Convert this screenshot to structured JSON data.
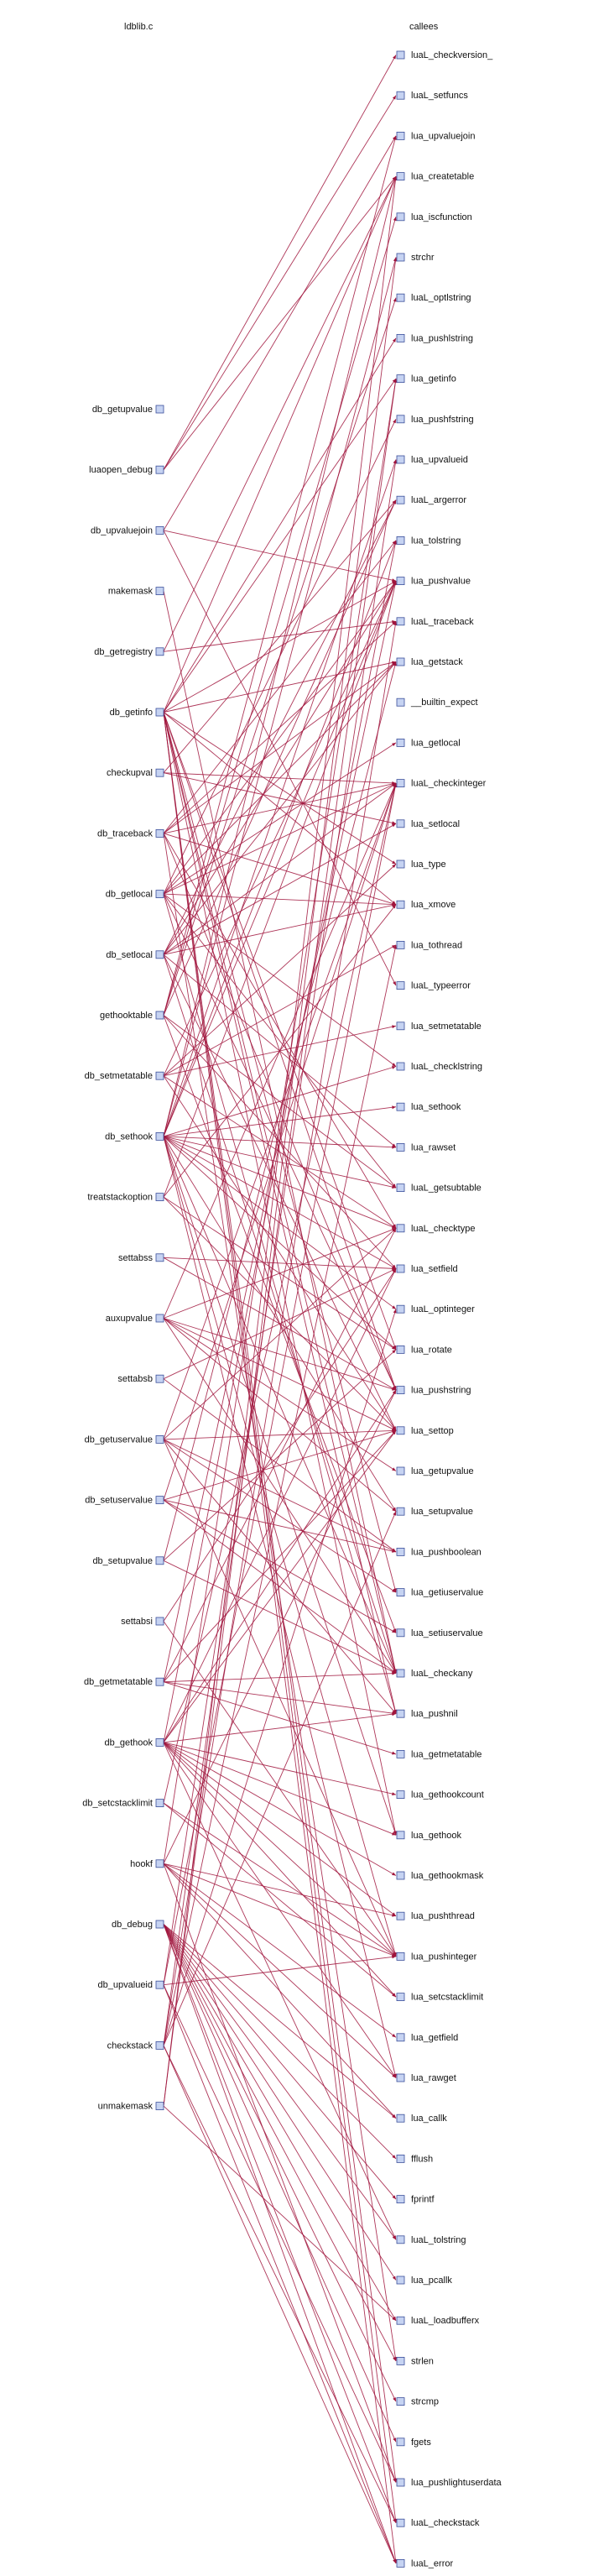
{
  "headers": {
    "left": "ldblib.c",
    "right": "callees"
  },
  "colors": {
    "edge": "#a0143c",
    "node_fill": "#c6d3f2",
    "node_stroke": "#3b4f9a",
    "text": "#111111"
  },
  "left_nodes": [
    "db_getupvalue",
    "luaopen_debug",
    "db_upvaluejoin",
    "makemask",
    "db_getregistry",
    "db_getinfo",
    "checkupval",
    "db_traceback",
    "db_getlocal",
    "db_setlocal",
    "gethooktable",
    "db_setmetatable",
    "db_sethook",
    "treatstackoption",
    "settabss",
    "auxupvalue",
    "settabsb",
    "db_getuservalue",
    "db_setuservalue",
    "db_setupvalue",
    "settabsi",
    "db_getmetatable",
    "db_gethook",
    "db_setcstacklimit",
    "hookf",
    "db_debug",
    "db_upvalueid",
    "checkstack",
    "unmakemask"
  ],
  "right_nodes": [
    "luaL_checkversion_",
    "luaL_setfuncs",
    "lua_upvaluejoin",
    "lua_createtable",
    "lua_iscfunction",
    "strchr",
    "luaL_optlstring",
    "lua_pushlstring",
    "lua_getinfo",
    "lua_pushfstring",
    "lua_upvalueid",
    "luaL_argerror",
    "lua_tolstring",
    "lua_pushvalue",
    "luaL_traceback",
    "lua_getstack",
    "__builtin_expect",
    "lua_getlocal",
    "luaL_checkinteger",
    "lua_setlocal",
    "lua_type",
    "lua_xmove",
    "lua_tothread",
    "luaL_typeerror",
    "lua_setmetatable",
    "luaL_checklstring",
    "lua_sethook",
    "lua_rawset",
    "luaL_getsubtable",
    "luaL_checktype",
    "lua_setfield",
    "luaL_optinteger",
    "lua_rotate",
    "lua_pushstring",
    "lua_settop",
    "lua_getupvalue",
    "lua_setupvalue",
    "lua_pushboolean",
    "lua_getiuservalue",
    "lua_setiuservalue",
    "luaL_checkany",
    "lua_pushnil",
    "lua_getmetatable",
    "lua_gethookcount",
    "lua_gethook",
    "lua_gethookmask",
    "lua_pushthread",
    "lua_pushinteger",
    "lua_setcstacklimit",
    "lua_getfield",
    "lua_rawget",
    "lua_callk",
    "fflush",
    "fprintf",
    "luaL_tolstring",
    "lua_pcallk",
    "luaL_loadbufferx",
    "strlen",
    "strcmp",
    "fgets",
    "lua_pushlightuserdata",
    "luaL_checkstack",
    "luaL_error"
  ],
  "edges": [
    [
      1,
      0
    ],
    [
      1,
      1
    ],
    [
      1,
      3
    ],
    [
      2,
      2
    ],
    [
      2,
      23
    ],
    [
      2,
      13
    ],
    [
      27,
      8
    ],
    [
      27,
      14
    ],
    [
      27,
      31
    ],
    [
      27,
      36
    ],
    [
      12,
      3
    ],
    [
      12,
      5
    ],
    [
      12,
      10
    ],
    [
      28,
      5
    ],
    [
      28,
      3
    ],
    [
      4,
      3
    ],
    [
      4,
      14
    ],
    [
      5,
      8
    ],
    [
      5,
      13
    ],
    [
      5,
      38
    ],
    [
      5,
      20
    ],
    [
      5,
      21
    ],
    [
      5,
      32
    ],
    [
      5,
      33
    ],
    [
      5,
      41
    ],
    [
      5,
      3
    ],
    [
      5,
      7
    ],
    [
      5,
      15
    ],
    [
      5,
      40
    ],
    [
      5,
      44
    ],
    [
      5,
      60
    ],
    [
      5,
      61
    ],
    [
      5,
      62
    ],
    [
      6,
      19
    ],
    [
      6,
      11
    ],
    [
      6,
      18
    ],
    [
      7,
      14
    ],
    [
      7,
      12
    ],
    [
      7,
      33
    ],
    [
      7,
      15
    ],
    [
      7,
      57
    ],
    [
      7,
      18
    ],
    [
      7,
      21
    ],
    [
      7,
      29
    ],
    [
      8,
      17
    ],
    [
      8,
      15
    ],
    [
      8,
      9
    ],
    [
      8,
      13
    ],
    [
      8,
      21
    ],
    [
      8,
      41
    ],
    [
      8,
      28
    ],
    [
      8,
      18
    ],
    [
      8,
      33
    ],
    [
      8,
      25
    ],
    [
      9,
      19
    ],
    [
      9,
      15
    ],
    [
      9,
      21
    ],
    [
      9,
      13
    ],
    [
      9,
      34
    ],
    [
      9,
      11
    ],
    [
      9,
      40
    ],
    [
      9,
      18
    ],
    [
      9,
      27
    ],
    [
      10,
      28
    ],
    [
      10,
      30
    ],
    [
      10,
      6
    ],
    [
      10,
      2
    ],
    [
      10,
      4
    ],
    [
      10,
      11
    ],
    [
      10,
      39
    ],
    [
      11,
      20
    ],
    [
      11,
      24
    ],
    [
      11,
      29
    ],
    [
      11,
      13
    ],
    [
      11,
      22
    ],
    [
      11,
      34
    ],
    [
      12,
      26
    ],
    [
      12,
      28
    ],
    [
      12,
      12
    ],
    [
      12,
      13
    ],
    [
      12,
      31
    ],
    [
      12,
      44
    ],
    [
      12,
      30
    ],
    [
      12,
      27
    ],
    [
      12,
      25
    ],
    [
      12,
      36
    ],
    [
      12,
      29
    ],
    [
      12,
      47
    ],
    [
      12,
      50
    ],
    [
      12,
      40
    ],
    [
      12,
      32
    ],
    [
      13,
      13
    ],
    [
      13,
      21
    ],
    [
      13,
      32
    ],
    [
      13,
      34
    ],
    [
      14,
      33
    ],
    [
      14,
      30
    ],
    [
      15,
      35
    ],
    [
      15,
      36
    ],
    [
      15,
      18
    ],
    [
      15,
      33
    ],
    [
      15,
      29
    ],
    [
      15,
      40
    ],
    [
      15,
      34
    ],
    [
      16,
      37
    ],
    [
      16,
      30
    ],
    [
      17,
      38
    ],
    [
      17,
      47
    ],
    [
      17,
      41
    ],
    [
      17,
      34
    ],
    [
      17,
      37
    ],
    [
      17,
      29
    ],
    [
      17,
      18
    ],
    [
      18,
      39
    ],
    [
      18,
      40
    ],
    [
      18,
      37
    ],
    [
      18,
      18
    ],
    [
      18,
      34
    ],
    [
      19,
      15
    ],
    [
      19,
      40
    ],
    [
      19,
      32
    ],
    [
      20,
      47
    ],
    [
      20,
      30
    ],
    [
      21,
      42
    ],
    [
      21,
      41
    ],
    [
      21,
      40
    ],
    [
      21,
      29
    ],
    [
      21,
      13
    ],
    [
      21,
      34
    ],
    [
      22,
      44
    ],
    [
      22,
      43
    ],
    [
      22,
      45
    ],
    [
      22,
      41
    ],
    [
      22,
      33
    ],
    [
      22,
      47
    ],
    [
      22,
      54
    ],
    [
      22,
      46
    ],
    [
      22,
      48
    ],
    [
      22,
      12
    ],
    [
      22,
      30
    ],
    [
      22,
      50
    ],
    [
      22,
      34
    ],
    [
      23,
      48
    ],
    [
      23,
      47
    ],
    [
      23,
      18
    ],
    [
      24,
      49
    ],
    [
      24,
      46
    ],
    [
      24,
      50
    ],
    [
      24,
      60
    ],
    [
      24,
      33
    ],
    [
      24,
      47
    ],
    [
      24,
      51
    ],
    [
      24,
      8
    ],
    [
      25,
      51
    ],
    [
      25,
      52
    ],
    [
      25,
      53
    ],
    [
      25,
      54
    ],
    [
      25,
      55
    ],
    [
      25,
      56
    ],
    [
      25,
      57
    ],
    [
      25,
      58
    ],
    [
      25,
      59
    ],
    [
      25,
      61
    ],
    [
      25,
      62
    ],
    [
      26,
      10
    ],
    [
      26,
      47
    ],
    [
      26,
      60
    ],
    [
      26,
      62
    ],
    [
      26,
      18
    ],
    [
      27,
      61
    ],
    [
      27,
      62
    ],
    [
      27,
      22
    ],
    [
      3,
      40
    ],
    [
      28,
      56
    ]
  ]
}
